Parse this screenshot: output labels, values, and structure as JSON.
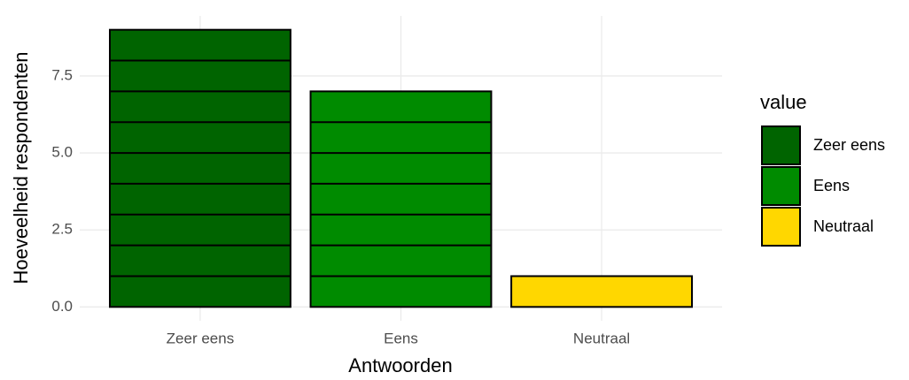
{
  "chart_data": {
    "type": "bar",
    "categories": [
      "Zeer eens",
      "Eens",
      "Neutraal"
    ],
    "values": [
      9,
      7,
      1
    ],
    "colors": [
      "#006400",
      "#008b00",
      "#ffd700"
    ],
    "xlabel": "Antwoorden",
    "ylabel": "Hoeveelheid respondenten",
    "legend_title": "value",
    "ylim": [
      -0.45,
      9.45
    ],
    "yticks": [
      {
        "value": 0,
        "label": "0.0"
      },
      {
        "value": 2.5,
        "label": "2.5"
      },
      {
        "value": 5,
        "label": "5.0"
      },
      {
        "value": 7.5,
        "label": "7.5"
      }
    ],
    "grid": true
  }
}
